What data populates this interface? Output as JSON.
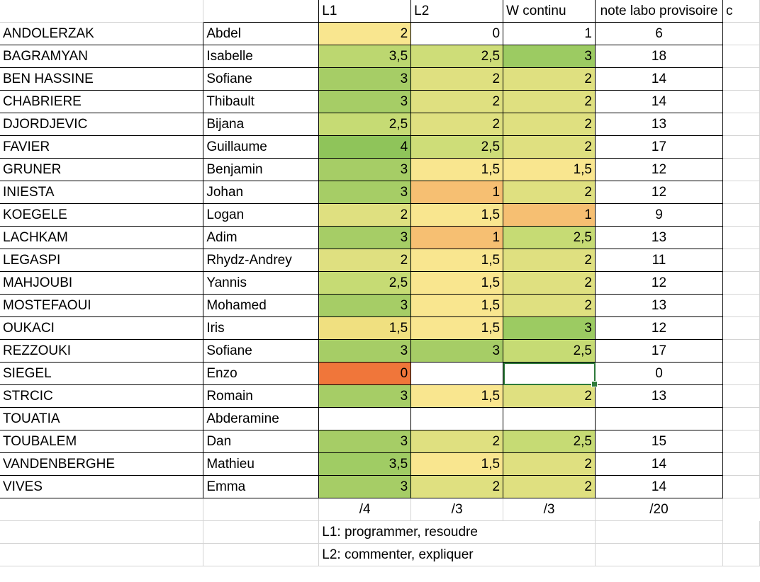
{
  "colors": {
    "s0": "#f0763a",
    "s1": "#f6bf72",
    "s15": "#f9e68f",
    "s2": "#dfe080",
    "s25": "#c6db74",
    "s3": "#a6cd66",
    "s35": "#a6cd66",
    "s4": "#8fc45a",
    "selection": "#2e7a3a"
  },
  "header": [
    "",
    "",
    "L1",
    "L2",
    "W continu",
    "note labo provisoire",
    "c"
  ],
  "rows": [
    {
      "last": "ANDOLERZAK",
      "first": "Abdel",
      "l1": "2",
      "l2": "0",
      "w": "1",
      "note": "6",
      "c1": "#f9e68f",
      "c2": "#ffffff",
      "c3": "#ffffff"
    },
    {
      "last": "BAGRAMYAN",
      "first": "Isabelle",
      "l1": "3,5",
      "l2": "2,5",
      "w": "3",
      "note": "18",
      "c1": "#bcd770",
      "c2": "#cedd78",
      "c3": "#9ccb62"
    },
    {
      "last": "BEN HASSINE",
      "first": "Sofiane",
      "l1": "3",
      "l2": "2",
      "w": "2",
      "note": "14",
      "c1": "#a6cd66",
      "c2": "#dfe080",
      "c3": "#dfe080"
    },
    {
      "last": "CHABRIERE",
      "first": "Thibault",
      "l1": "3",
      "l2": "2",
      "w": "2",
      "note": "14",
      "c1": "#a6cd66",
      "c2": "#dfe080",
      "c3": "#dfe080"
    },
    {
      "last": "DJORDJEVIC",
      "first": "Bijana",
      "l1": "2,5",
      "l2": "2",
      "w": "2",
      "note": "13",
      "c1": "#c6db74",
      "c2": "#dfe080",
      "c3": "#dfe080"
    },
    {
      "last": "FAVIER",
      "first": "Guillaume",
      "l1": "4",
      "l2": "2,5",
      "w": "2",
      "note": "17",
      "c1": "#8fc45a",
      "c2": "#cedd78",
      "c3": "#dfe080"
    },
    {
      "last": "GRUNER",
      "first": "Benjamin",
      "l1": "3",
      "l2": "1,5",
      "w": "1,5",
      "note": "12",
      "c1": "#a6cd66",
      "c2": "#f9e68f",
      "c3": "#f9e68f"
    },
    {
      "last": "INIESTA",
      "first": "Johan",
      "l1": "3",
      "l2": "1",
      "w": "2",
      "note": "12",
      "c1": "#a6cd66",
      "c2": "#f6bf72",
      "c3": "#dfe080"
    },
    {
      "last": "KOEGELE",
      "first": "Logan",
      "l1": "2",
      "l2": "1,5",
      "w": "1",
      "note": "9",
      "c1": "#dfe080",
      "c2": "#f9e68f",
      "c3": "#f6bf72"
    },
    {
      "last": "LACHKAM",
      "first": "Adim",
      "l1": "3",
      "l2": "1",
      "w": "2,5",
      "note": "13",
      "c1": "#a6cd66",
      "c2": "#f6bf72",
      "c3": "#c6db74"
    },
    {
      "last": "LEGASPI",
      "first": "Rhydz-Andrey",
      "l1": "2",
      "l2": "1,5",
      "w": "2",
      "note": "11",
      "c1": "#dfe080",
      "c2": "#f9e68f",
      "c3": "#dfe080"
    },
    {
      "last": "MAHJOUBI",
      "first": "Yannis",
      "l1": "2,5",
      "l2": "1,5",
      "w": "2",
      "note": "12",
      "c1": "#c6db74",
      "c2": "#f9e68f",
      "c3": "#dfe080"
    },
    {
      "last": "MOSTEFAOUI",
      "first": "Mohamed",
      "l1": "3",
      "l2": "1,5",
      "w": "2",
      "note": "13",
      "c1": "#a6cd66",
      "c2": "#f9e68f",
      "c3": "#dfe080"
    },
    {
      "last": "OUKACI",
      "first": "Iris",
      "l1": "1,5",
      "l2": "1,5",
      "w": "3",
      "note": "12",
      "c1": "#f0e080",
      "c2": "#f9e68f",
      "c3": "#9ccb62"
    },
    {
      "last": "REZZOUKI",
      "first": "Sofiane",
      "l1": "3",
      "l2": "3",
      "w": "2,5",
      "note": "17",
      "c1": "#a6cd66",
      "c2": "#a6cd66",
      "c3": "#c6db74"
    },
    {
      "last": "SIEGEL",
      "first": "Enzo",
      "l1": "0",
      "l2": "",
      "w": "",
      "note": "0",
      "c1": "#f0763a",
      "c2": "#ffffff",
      "c3": "#ffffff",
      "selected": true
    },
    {
      "last": "STRCIC",
      "first": "Romain",
      "l1": "3",
      "l2": "1,5",
      "w": "2",
      "note": "13",
      "c1": "#a6cd66",
      "c2": "#f9e68f",
      "c3": "#dfe080"
    },
    {
      "last": "TOUATIA",
      "first": "Abderamine",
      "l1": "",
      "l2": "",
      "w": "",
      "note": "",
      "c1": "#ffffff",
      "c2": "#ffffff",
      "c3": "#ffffff"
    },
    {
      "last": "TOUBALEM",
      "first": "Dan",
      "l1": "3",
      "l2": "2",
      "w": "2,5",
      "note": "15",
      "c1": "#a6cd66",
      "c2": "#dfe080",
      "c3": "#c6db74"
    },
    {
      "last": "VANDENBERGHE",
      "first": "Mathieu",
      "l1": "3,5",
      "l2": "1,5",
      "w": "2",
      "note": "14",
      "c1": "#a0cc64",
      "c2": "#f9e68f",
      "c3": "#dfe080"
    },
    {
      "last": "VIVES",
      "first": "Emma",
      "l1": "3",
      "l2": "2",
      "w": "2",
      "note": "14",
      "c1": "#a6cd66",
      "c2": "#dfe080",
      "c3": "#dfe080"
    }
  ],
  "totals": [
    "",
    "",
    "/4",
    "/3",
    "/3",
    "/20"
  ],
  "notes": [
    "L1: programmer, resoudre",
    "L2: commenter, expliquer"
  ]
}
